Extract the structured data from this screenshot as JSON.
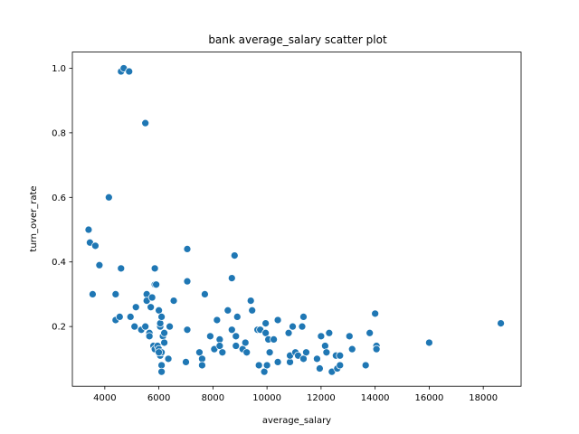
{
  "chart_data": {
    "type": "scatter",
    "title": "bank average_salary scatter plot",
    "xlabel": "average_salary",
    "ylabel": "turn_over_rate",
    "xlim": [
      2800,
      19400
    ],
    "ylim": [
      0.015,
      1.05
    ],
    "xticks": [
      4000,
      6000,
      8000,
      10000,
      12000,
      14000,
      16000,
      18000
    ],
    "yticks": [
      0.2,
      0.4,
      0.6,
      0.8,
      1.0
    ],
    "xtick_labels": [
      "4000",
      "6000",
      "8000",
      "10000",
      "12000",
      "14000",
      "16000",
      "18000"
    ],
    "ytick_labels": [
      "0.2",
      "0.4",
      "0.6",
      "0.8",
      "1.0"
    ],
    "grid": false,
    "legend": false,
    "point_color": "#1f77b4",
    "points": [
      {
        "x": 4600,
        "y": 0.99
      },
      {
        "x": 4700,
        "y": 1.0
      },
      {
        "x": 4900,
        "y": 0.99
      },
      {
        "x": 5500,
        "y": 0.83
      },
      {
        "x": 4150,
        "y": 0.6
      },
      {
        "x": 3400,
        "y": 0.5
      },
      {
        "x": 3450,
        "y": 0.46
      },
      {
        "x": 3650,
        "y": 0.45
      },
      {
        "x": 3800,
        "y": 0.39
      },
      {
        "x": 3550,
        "y": 0.3
      },
      {
        "x": 4400,
        "y": 0.3
      },
      {
        "x": 4600,
        "y": 0.38
      },
      {
        "x": 4400,
        "y": 0.22
      },
      {
        "x": 4550,
        "y": 0.23
      },
      {
        "x": 4950,
        "y": 0.23
      },
      {
        "x": 5150,
        "y": 0.26
      },
      {
        "x": 5100,
        "y": 0.2
      },
      {
        "x": 5350,
        "y": 0.19
      },
      {
        "x": 5550,
        "y": 0.3
      },
      {
        "x": 5550,
        "y": 0.28
      },
      {
        "x": 5500,
        "y": 0.2
      },
      {
        "x": 5650,
        "y": 0.18
      },
      {
        "x": 5650,
        "y": 0.17
      },
      {
        "x": 5700,
        "y": 0.26
      },
      {
        "x": 5750,
        "y": 0.29
      },
      {
        "x": 5850,
        "y": 0.38
      },
      {
        "x": 5850,
        "y": 0.33
      },
      {
        "x": 5900,
        "y": 0.33
      },
      {
        "x": 5800,
        "y": 0.14
      },
      {
        "x": 5850,
        "y": 0.13
      },
      {
        "x": 5950,
        "y": 0.14
      },
      {
        "x": 6000,
        "y": 0.25
      },
      {
        "x": 6050,
        "y": 0.2
      },
      {
        "x": 6050,
        "y": 0.21
      },
      {
        "x": 6100,
        "y": 0.23
      },
      {
        "x": 6000,
        "y": 0.13
      },
      {
        "x": 6050,
        "y": 0.11
      },
      {
        "x": 6100,
        "y": 0.12
      },
      {
        "x": 6100,
        "y": 0.08
      },
      {
        "x": 6100,
        "y": 0.06
      },
      {
        "x": 6150,
        "y": 0.17
      },
      {
        "x": 6200,
        "y": 0.15
      },
      {
        "x": 6200,
        "y": 0.18
      },
      {
        "x": 6350,
        "y": 0.1
      },
      {
        "x": 6400,
        "y": 0.2
      },
      {
        "x": 6550,
        "y": 0.28
      },
      {
        "x": 7050,
        "y": 0.44
      },
      {
        "x": 7050,
        "y": 0.34
      },
      {
        "x": 7000,
        "y": 0.09
      },
      {
        "x": 7050,
        "y": 0.19
      },
      {
        "x": 7500,
        "y": 0.12
      },
      {
        "x": 7600,
        "y": 0.1
      },
      {
        "x": 7600,
        "y": 0.08
      },
      {
        "x": 7700,
        "y": 0.3
      },
      {
        "x": 7900,
        "y": 0.17
      },
      {
        "x": 8050,
        "y": 0.13
      },
      {
        "x": 8150,
        "y": 0.22
      },
      {
        "x": 8250,
        "y": 0.16
      },
      {
        "x": 8250,
        "y": 0.14
      },
      {
        "x": 8350,
        "y": 0.12
      },
      {
        "x": 8550,
        "y": 0.25
      },
      {
        "x": 8700,
        "y": 0.35
      },
      {
        "x": 8800,
        "y": 0.42
      },
      {
        "x": 8700,
        "y": 0.19
      },
      {
        "x": 8850,
        "y": 0.17
      },
      {
        "x": 8850,
        "y": 0.14
      },
      {
        "x": 8900,
        "y": 0.23
      },
      {
        "x": 9100,
        "y": 0.13
      },
      {
        "x": 9200,
        "y": 0.15
      },
      {
        "x": 9250,
        "y": 0.12
      },
      {
        "x": 9400,
        "y": 0.28
      },
      {
        "x": 9450,
        "y": 0.25
      },
      {
        "x": 9650,
        "y": 0.19
      },
      {
        "x": 9750,
        "y": 0.19
      },
      {
        "x": 9700,
        "y": 0.08
      },
      {
        "x": 9900,
        "y": 0.06
      },
      {
        "x": 9950,
        "y": 0.21
      },
      {
        "x": 9950,
        "y": 0.18
      },
      {
        "x": 10000,
        "y": 0.08
      },
      {
        "x": 10050,
        "y": 0.16
      },
      {
        "x": 10100,
        "y": 0.12
      },
      {
        "x": 10250,
        "y": 0.16
      },
      {
        "x": 10400,
        "y": 0.22
      },
      {
        "x": 10400,
        "y": 0.09
      },
      {
        "x": 10800,
        "y": 0.18
      },
      {
        "x": 10850,
        "y": 0.09
      },
      {
        "x": 10850,
        "y": 0.11
      },
      {
        "x": 10950,
        "y": 0.2
      },
      {
        "x": 11050,
        "y": 0.12
      },
      {
        "x": 11150,
        "y": 0.11
      },
      {
        "x": 11300,
        "y": 0.2
      },
      {
        "x": 11350,
        "y": 0.23
      },
      {
        "x": 11350,
        "y": 0.1
      },
      {
        "x": 11450,
        "y": 0.12
      },
      {
        "x": 11850,
        "y": 0.1
      },
      {
        "x": 11950,
        "y": 0.07
      },
      {
        "x": 12000,
        "y": 0.17
      },
      {
        "x": 12150,
        "y": 0.14
      },
      {
        "x": 12200,
        "y": 0.12
      },
      {
        "x": 12300,
        "y": 0.18
      },
      {
        "x": 12400,
        "y": 0.06
      },
      {
        "x": 12550,
        "y": 0.11
      },
      {
        "x": 12600,
        "y": 0.07
      },
      {
        "x": 12700,
        "y": 0.08
      },
      {
        "x": 13050,
        "y": 0.17
      },
      {
        "x": 13150,
        "y": 0.13
      },
      {
        "x": 13650,
        "y": 0.08
      },
      {
        "x": 13800,
        "y": 0.18
      },
      {
        "x": 14000,
        "y": 0.24
      },
      {
        "x": 14050,
        "y": 0.14
      },
      {
        "x": 14050,
        "y": 0.13
      },
      {
        "x": 16000,
        "y": 0.15
      },
      {
        "x": 18650,
        "y": 0.21
      },
      {
        "x": 12700,
        "y": 0.11
      },
      {
        "x": 6000,
        "y": 0.12
      }
    ]
  }
}
